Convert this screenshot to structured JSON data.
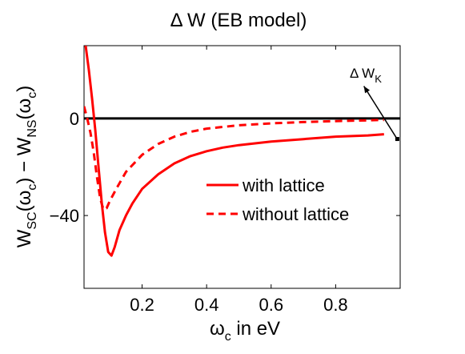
{
  "chart_data": {
    "type": "line",
    "title": "Δ W (EB model)",
    "xlabel": "ω",
    "xlabel_sub": "c",
    "xlabel_rest": " in eV",
    "ylabel": "W",
    "ylabel_parts": [
      "W",
      "SC",
      "(ω",
      "c",
      ") − W",
      "NS",
      "(ω",
      "c",
      ")"
    ],
    "xlim": [
      0.02,
      1.0
    ],
    "ylim": [
      -70,
      30
    ],
    "xticks": [
      0.2,
      0.4,
      0.6,
      0.8
    ],
    "xtick_labels": [
      "0.2",
      "0.4",
      "0.6",
      "0.8"
    ],
    "yticks": [
      0,
      -40
    ],
    "ytick_labels": [
      "0",
      "−40"
    ],
    "grid": false,
    "legend_position": "center-right",
    "annotation": {
      "text": "Δ W",
      "sub": "K",
      "arrow_from": [
        0.97,
        -5
      ],
      "arrow_to": [
        0.88,
        12
      ]
    },
    "baseline": {
      "y": 0,
      "color": "#000000"
    },
    "series": [
      {
        "name": "with lattice",
        "style": "solid",
        "color": "#ff0000",
        "x": [
          0.025,
          0.035,
          0.045,
          0.055,
          0.065,
          0.075,
          0.085,
          0.095,
          0.105,
          0.115,
          0.13,
          0.15,
          0.17,
          0.2,
          0.25,
          0.3,
          0.35,
          0.4,
          0.45,
          0.5,
          0.6,
          0.7,
          0.8,
          0.9,
          0.95
        ],
        "y": [
          30,
          20,
          8,
          -5,
          -20,
          -35,
          -47,
          -55,
          -56.5,
          -53,
          -46,
          -40,
          -35,
          -29,
          -23,
          -18.5,
          -15.5,
          -13.5,
          -12,
          -11,
          -9.5,
          -8.5,
          -7.5,
          -7,
          -6.5
        ]
      },
      {
        "name": "without lattice",
        "style": "dashed",
        "color": "#ff0000",
        "x": [
          0.02,
          0.03,
          0.04,
          0.05,
          0.06,
          0.07,
          0.08,
          0.09,
          0.1,
          0.12,
          0.15,
          0.2,
          0.25,
          0.3,
          0.35,
          0.4,
          0.5,
          0.6,
          0.7,
          0.8,
          0.9,
          0.95
        ],
        "y": [
          5,
          0,
          -6,
          -14,
          -24,
          -33,
          -37.5,
          -37,
          -34,
          -29,
          -22,
          -15,
          -10.5,
          -7.5,
          -5.5,
          -4.2,
          -2.8,
          -2,
          -1.5,
          -1.1,
          -0.8,
          -0.6
        ]
      }
    ]
  }
}
